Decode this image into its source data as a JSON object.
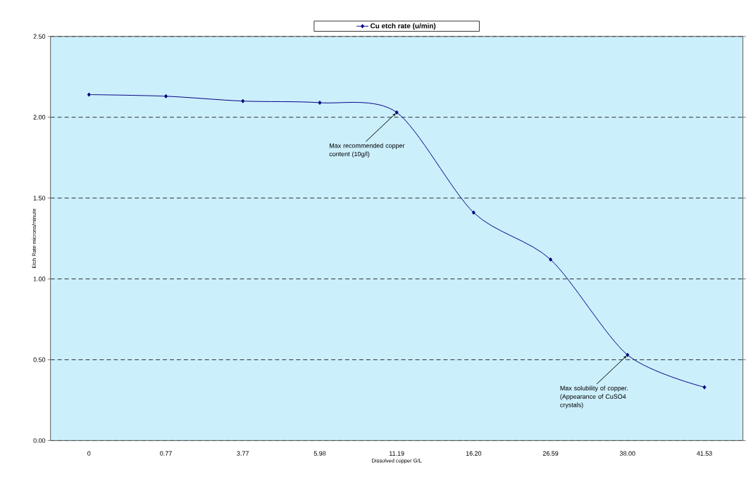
{
  "chart_data": {
    "type": "line",
    "categories": [
      "0",
      "0.77",
      "3.77",
      "5.98",
      "11.19",
      "16.20",
      "26.59",
      "38.00",
      "41.53"
    ],
    "series": [
      {
        "name": "Cu etch rate (u/min)",
        "color": "#000080",
        "values": [
          2.14,
          2.13,
          2.1,
          2.09,
          2.03,
          1.41,
          1.12,
          0.53,
          0.33
        ]
      }
    ],
    "xlabel": "Dissolved copper G/L",
    "ylabel": "Etch Rate microns/minute",
    "ylim": [
      0,
      2.5
    ],
    "yticks": [
      {
        "value": 0,
        "label": "0.00"
      },
      {
        "value": 0.5,
        "label": "0.50"
      },
      {
        "value": 1,
        "label": "1.00"
      },
      {
        "value": 1.5,
        "label": "1.50"
      },
      {
        "value": 2,
        "label": "2.00"
      },
      {
        "value": 2.5,
        "label": "2.50"
      }
    ],
    "grid": "y",
    "legend": "top",
    "marker": "diamond",
    "line_style": "solid",
    "annotations": [
      {
        "text": "Max recommended copper content (10g/l)",
        "x": "11.19",
        "y": 2.03
      },
      {
        "text": "Max solubility of copper. (Appearance of CuSO4 crystals)",
        "x": "38.00",
        "y": 0.53
      }
    ]
  }
}
